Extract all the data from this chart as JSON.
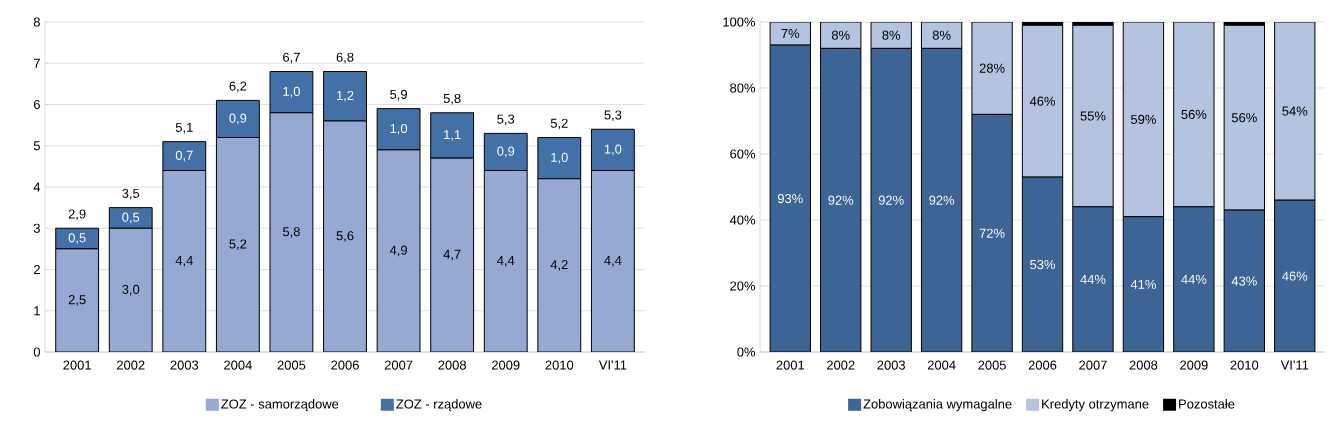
{
  "chart_data": [
    {
      "type": "bar",
      "stacked": true,
      "categories": [
        "2001",
        "2002",
        "2003",
        "2004",
        "2005",
        "2006",
        "2007",
        "2008",
        "2009",
        "2010",
        "VI'11"
      ],
      "series": [
        {
          "name": "ZOZ - samorządowe",
          "color": "#95a9d3",
          "values": [
            2.5,
            3.0,
            4.4,
            5.2,
            5.8,
            5.6,
            4.9,
            4.7,
            4.4,
            4.2,
            4.4
          ],
          "value_labels": [
            "2,5",
            "3,0",
            "4,4",
            "5,2",
            "5,8",
            "5,6",
            "4,9",
            "4,7",
            "4,4",
            "4,2",
            "4,4"
          ]
        },
        {
          "name": "ZOZ - rządowe",
          "color": "#4470a8",
          "values": [
            0.5,
            0.5,
            0.7,
            0.9,
            1.0,
            1.2,
            1.0,
            1.1,
            0.9,
            1.0,
            1.0
          ],
          "value_labels": [
            "0,5",
            "0,5",
            "0,7",
            "0,9",
            "1,0",
            "1,2",
            "1,0",
            "1,1",
            "0,9",
            "1,0",
            "1,0"
          ]
        }
      ],
      "totals": [
        "2,9",
        "3,5",
        "5,1",
        "6,2",
        "6,7",
        "6,8",
        "5,9",
        "5,8",
        "5,3",
        "5,2",
        "5,3"
      ],
      "ylim": [
        0,
        8
      ],
      "yticks": [
        0,
        1,
        2,
        3,
        4,
        5,
        6,
        7,
        8
      ],
      "grid": "y",
      "legend": "bottom"
    },
    {
      "type": "bar",
      "stacked": true,
      "categories": [
        "2001",
        "2002",
        "2003",
        "2004",
        "2005",
        "2006",
        "2007",
        "2008",
        "2009",
        "2010",
        "VI'11"
      ],
      "series": [
        {
          "name": "Zobowiązania wymagalne",
          "color": "#3c6494",
          "values": [
            93,
            92,
            92,
            92,
            72,
            53,
            44,
            41,
            44,
            43,
            46
          ],
          "value_labels": [
            "93%",
            "92%",
            "92%",
            "92%",
            "72%",
            "53%",
            "44%",
            "41%",
            "44%",
            "43%",
            "46%"
          ]
        },
        {
          "name": "Kredyty otrzymane",
          "color": "#b4c3df",
          "values": [
            7,
            8,
            8,
            8,
            28,
            46,
            55,
            59,
            56,
            56,
            54
          ],
          "value_labels": [
            "7%",
            "8%",
            "8%",
            "8%",
            "28%",
            "46%",
            "55%",
            "59%",
            "56%",
            "56%",
            "54%"
          ]
        },
        {
          "name": "Pozostałe",
          "color": "#000000",
          "values": [
            0,
            0,
            0,
            0,
            0,
            1,
            1,
            0,
            0,
            1,
            0
          ]
        }
      ],
      "ylim": [
        0,
        100
      ],
      "yticks": [
        {
          "value": 0,
          "label": "0%"
        },
        {
          "value": 20,
          "label": "20%"
        },
        {
          "value": 40,
          "label": "40%"
        },
        {
          "value": 60,
          "label": "60%"
        },
        {
          "value": 80,
          "label": "80%"
        },
        {
          "value": 100,
          "label": "100%"
        }
      ],
      "grid": "y",
      "legend": "bottom"
    }
  ]
}
